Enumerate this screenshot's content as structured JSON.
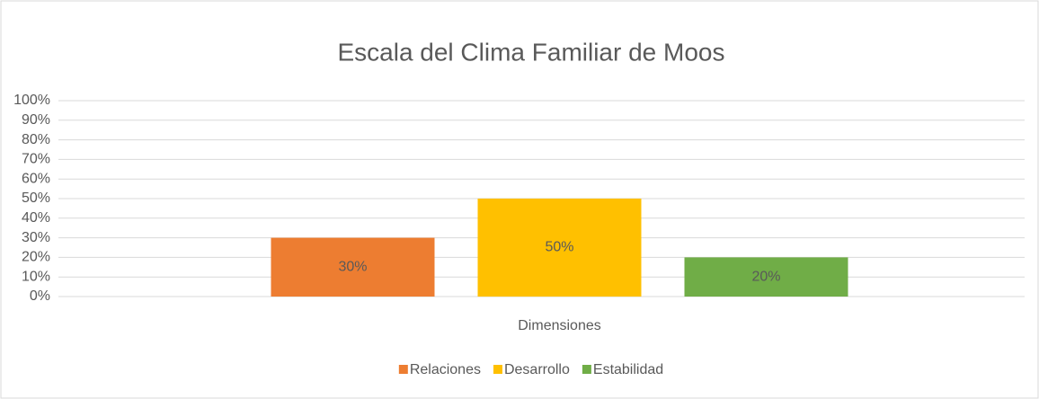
{
  "chart_data": {
    "type": "bar",
    "title": "Escala del Clima Familiar de Moos",
    "categories": [
      "Dimensiones"
    ],
    "series": [
      {
        "name": "Relaciones",
        "color": "#ed7d31",
        "values": [
          30
        ],
        "value_labels": [
          "30%"
        ]
      },
      {
        "name": "Desarrollo",
        "color": "#ffc000",
        "values": [
          50
        ],
        "value_labels": [
          "50%"
        ]
      },
      {
        "name": "Estabilidad",
        "color": "#70ad47",
        "values": [
          20
        ],
        "value_labels": [
          "20%"
        ]
      }
    ],
    "ylim": [
      0,
      100
    ],
    "yticks": [
      {
        "value": 0,
        "label": "0%"
      },
      {
        "value": 10,
        "label": "10%"
      },
      {
        "value": 20,
        "label": "20%"
      },
      {
        "value": 30,
        "label": "30%"
      },
      {
        "value": 40,
        "label": "40%"
      },
      {
        "value": 50,
        "label": "50%"
      },
      {
        "value": 60,
        "label": "60%"
      },
      {
        "value": 70,
        "label": "70%"
      },
      {
        "value": 80,
        "label": "80%"
      },
      {
        "value": 90,
        "label": "90%"
      },
      {
        "value": 100,
        "label": "100%"
      }
    ],
    "grid": true,
    "legend": "bottom"
  }
}
